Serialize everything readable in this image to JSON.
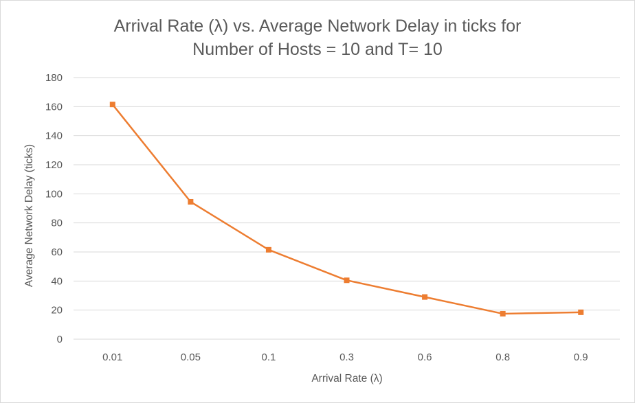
{
  "chart_data": {
    "type": "line",
    "title_lines": [
      "Arrival Rate (λ) vs. Average Network Delay in ticks for",
      "Number of Hosts = 10 and T= 10"
    ],
    "xlabel": "Arrival Rate (λ)",
    "ylabel": "Average Network Delay (ticks)",
    "categories": [
      "0.01",
      "0.05",
      "0.1",
      "0.3",
      "0.6",
      "0.8",
      "0.9"
    ],
    "series": [
      {
        "values": [
          161.5,
          94.5,
          61.5,
          40.5,
          29,
          17.5,
          18.5
        ],
        "color": "#ED7D31",
        "marker": "square"
      }
    ],
    "ylim": [
      0,
      180
    ],
    "yticks": [
      "0",
      "20",
      "40",
      "60",
      "80",
      "100",
      "120",
      "140",
      "160",
      "180"
    ],
    "grid": "horizontal",
    "legend": "none"
  }
}
